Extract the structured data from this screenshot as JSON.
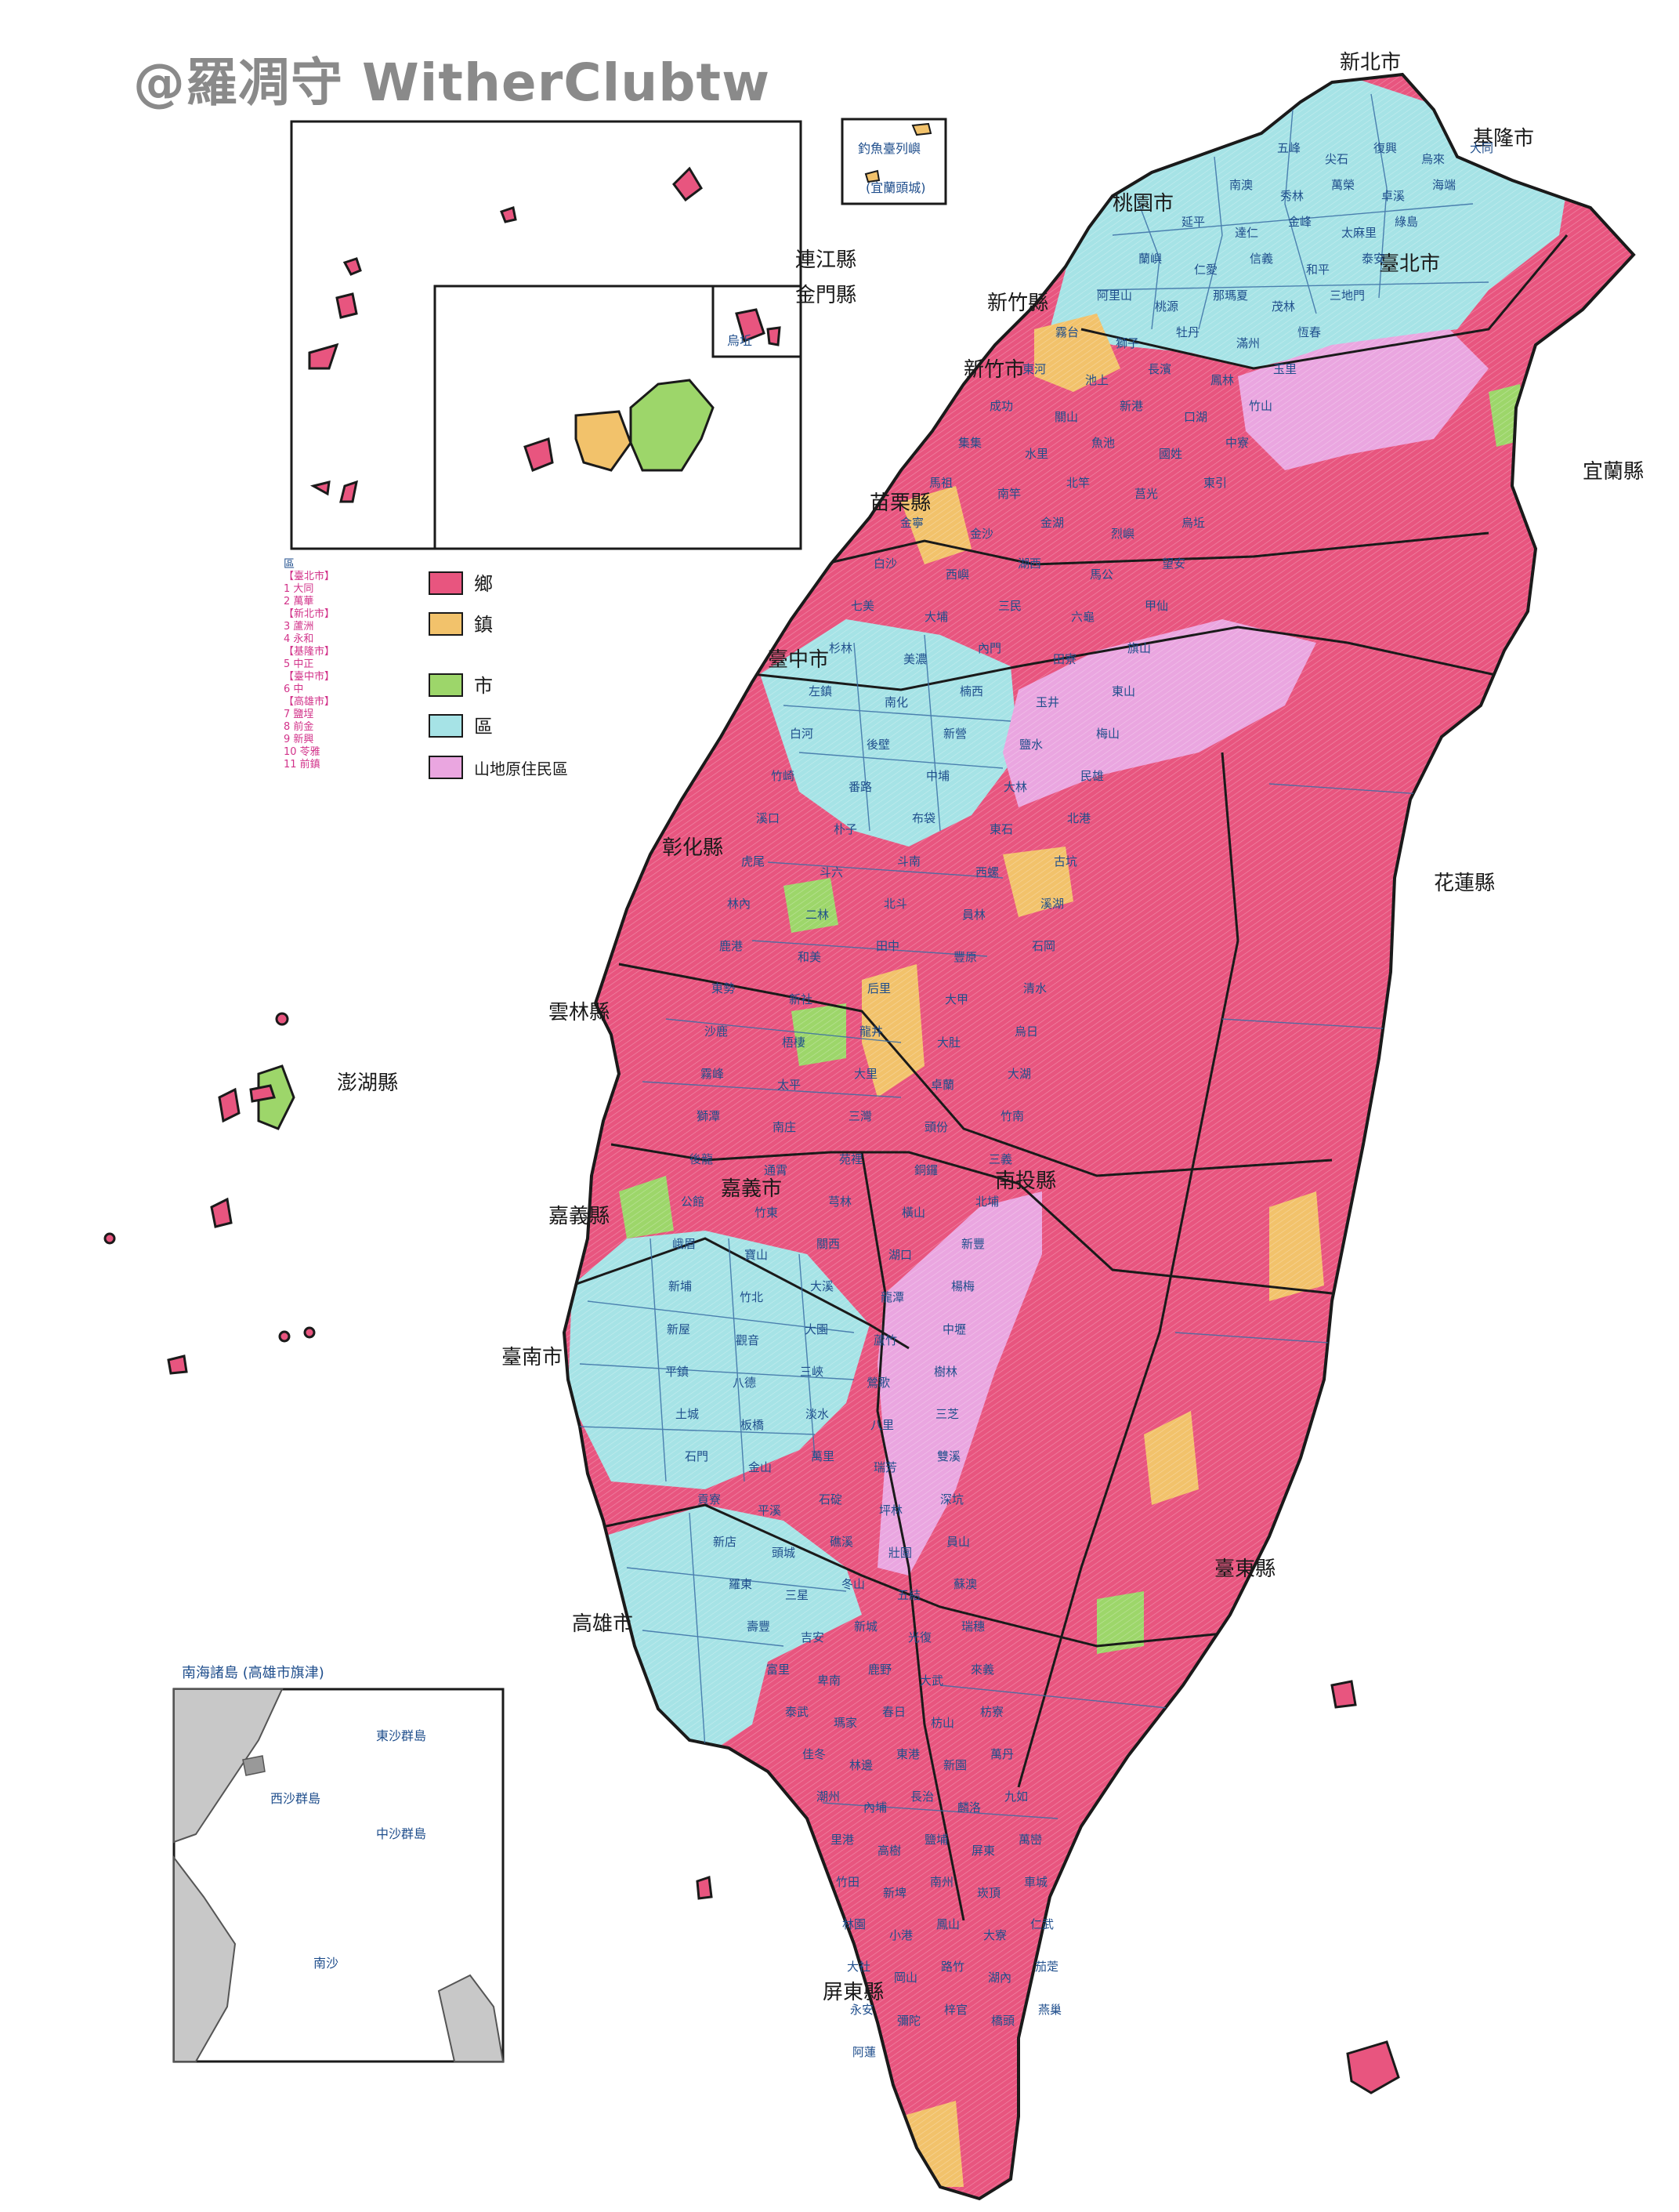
{
  "watermark": "@羅凋守 WitherClubtw",
  "legend": {
    "items": [
      {
        "label": "鄉",
        "color": "#e8557f"
      },
      {
        "label": "鎮",
        "color": "#f2c26b"
      },
      {
        "label": "市",
        "color": "#9dd66a"
      },
      {
        "label": "區",
        "color": "#a6e3e6"
      },
      {
        "label": "山地原住民區",
        "color": "#eaa6e0"
      }
    ],
    "side_header": "區",
    "side_list": [
      "【臺北市】",
      "1 大同",
      "2 萬華",
      "【新北市】",
      "3 蘆洲",
      "4 永和",
      "【基隆市】",
      "5 中正",
      "【臺中市】",
      "6 中",
      "【高雄市】",
      "7 鹽埕",
      "8 前金",
      "9 新興",
      "10 苓雅",
      "11 前鎮"
    ]
  },
  "colors": {
    "xiang": "#e8557f",
    "zhen": "#f2c26b",
    "shi": "#9dd66a",
    "qu": "#a6e3e6",
    "indigenous": "#eaa6e0",
    "border": "#1a1a1a",
    "label": "#1f4e8c"
  },
  "county_labels": [
    "新北市",
    "臺北市",
    "基隆市",
    "桃園市",
    "新竹縣",
    "新竹市",
    "苗栗縣",
    "臺中市",
    "彰化縣",
    "南投縣",
    "雲林縣",
    "嘉義縣",
    "嘉義市",
    "臺南市",
    "高雄市",
    "屏東縣",
    "宜蘭縣",
    "花蓮縣",
    "臺東縣",
    "澎湖縣",
    "連江縣",
    "金門縣"
  ],
  "place_labels": [
    "五峰",
    "尖石",
    "復興",
    "烏來",
    "大同",
    "南澳",
    "秀林",
    "萬榮",
    "卓溪",
    "海端",
    "延平",
    "達仁",
    "金峰",
    "太麻里",
    "綠島",
    "蘭嶼",
    "仁愛",
    "信義",
    "和平",
    "泰安",
    "阿里山",
    "桃源",
    "那瑪夏",
    "茂林",
    "三地門",
    "霧台",
    "獅子",
    "牡丹",
    "滿州",
    "恆春",
    "東河",
    "池上",
    "長濱",
    "鳳林",
    "玉里",
    "成功",
    "關山",
    "新港",
    "口湖",
    "竹山",
    "集集",
    "水里",
    "魚池",
    "國姓",
    "中寮",
    "馬祖",
    "南竿",
    "北竿",
    "莒光",
    "東引",
    "金寧",
    "金沙",
    "金湖",
    "烈嶼",
    "烏坵",
    "白沙",
    "西嶼",
    "湖西",
    "馬公",
    "望安",
    "七美",
    "大埔",
    "三民",
    "六龜",
    "甲仙",
    "杉林",
    "美濃",
    "內門",
    "田寮",
    "旗山",
    "左鎮",
    "南化",
    "楠西",
    "玉井",
    "東山",
    "白河",
    "後壁",
    "新營",
    "鹽水",
    "梅山",
    "竹崎",
    "番路",
    "中埔",
    "大林",
    "民雄",
    "溪口",
    "朴子",
    "布袋",
    "東石",
    "北港",
    "虎尾",
    "斗六",
    "斗南",
    "西螺",
    "古坑",
    "林內",
    "二林",
    "北斗",
    "員林",
    "溪湖",
    "鹿港",
    "和美",
    "田中",
    "豐原",
    "石岡",
    "東勢",
    "新社",
    "后里",
    "大甲",
    "清水",
    "沙鹿",
    "梧棲",
    "龍井",
    "大肚",
    "烏日",
    "霧峰",
    "太平",
    "大里",
    "卓蘭",
    "大湖",
    "獅潭",
    "南庄",
    "三灣",
    "頭份",
    "竹南",
    "後龍",
    "通霄",
    "苑裡",
    "銅鑼",
    "三義",
    "公館",
    "竹東",
    "芎林",
    "橫山",
    "北埔",
    "峨眉",
    "寶山",
    "關西",
    "湖口",
    "新豐",
    "新埔",
    "竹北",
    "大溪",
    "龍潭",
    "楊梅",
    "新屋",
    "觀音",
    "大園",
    "蘆竹",
    "中壢",
    "平鎮",
    "八德",
    "三峽",
    "鶯歌",
    "樹林",
    "土城",
    "板橋",
    "淡水",
    "八里",
    "三芝",
    "石門",
    "金山",
    "萬里",
    "瑞芳",
    "雙溪",
    "貢寮",
    "平溪",
    "石碇",
    "坪林",
    "深坑",
    "新店",
    "頭城",
    "礁溪",
    "壯圍",
    "員山",
    "羅東",
    "三星",
    "冬山",
    "五結",
    "蘇澳",
    "壽豐",
    "吉安",
    "新城",
    "光復",
    "瑞穗",
    "富里",
    "卑南",
    "鹿野",
    "大武",
    "來義",
    "泰武",
    "瑪家",
    "春日",
    "枋山",
    "枋寮",
    "佳冬",
    "林邊",
    "東港",
    "新園",
    "萬丹",
    "潮州",
    "內埔",
    "長治",
    "麟洛",
    "九如",
    "里港",
    "高樹",
    "鹽埔",
    "屏東",
    "萬巒",
    "竹田",
    "新埤",
    "南州",
    "崁頂",
    "車城",
    "林園",
    "小港",
    "鳳山",
    "大寮",
    "仁武",
    "大社",
    "岡山",
    "路竹",
    "湖內",
    "茄萣",
    "永安",
    "彌陀",
    "梓官",
    "橋頭",
    "燕巢",
    "阿蓮"
  ],
  "inset_labels": {
    "south_china_sea_title": "南海諸島 (高雄市旗津)",
    "dongsha": "東沙群島",
    "xisha": "西沙群島",
    "zhongsha": "中沙群島",
    "nansha": "南沙",
    "diaoyutai": "釣魚臺列嶼",
    "diaoyutai_sub": "(宜蘭頭城)",
    "wuqiu": "烏坵"
  }
}
